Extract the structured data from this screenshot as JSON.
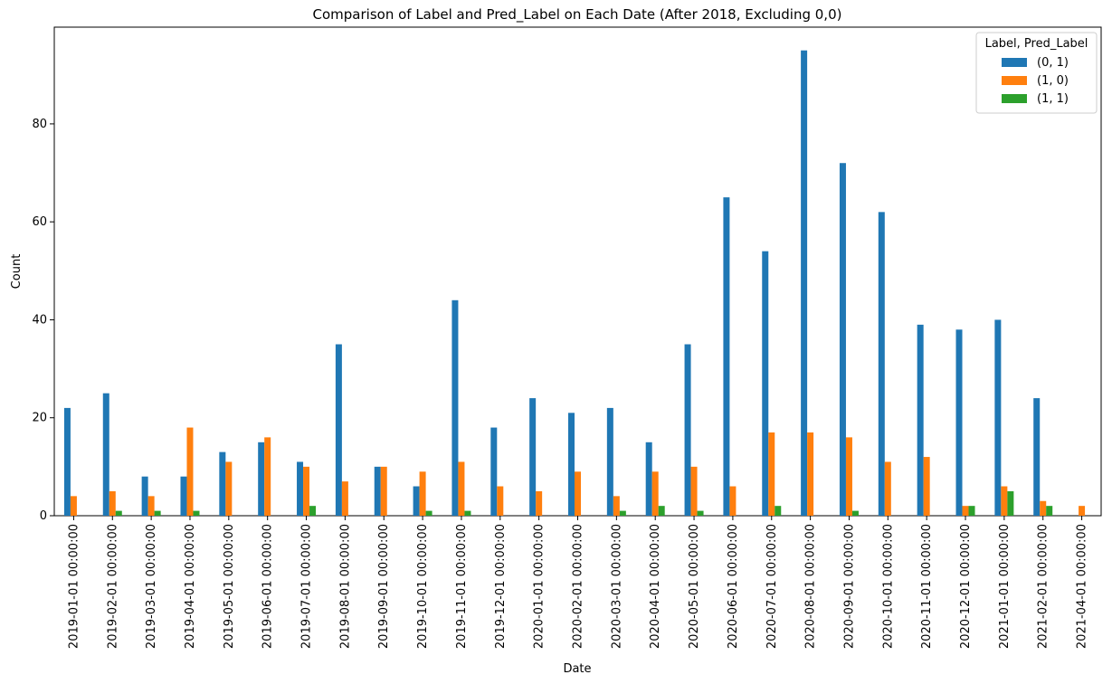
{
  "chart_data": {
    "type": "bar",
    "title": "Comparison of Label and Pred_Label on Each Date (After 2018, Excluding 0,0)",
    "xlabel": "Date",
    "ylabel": "Count",
    "ylim": [
      0,
      99.75
    ],
    "yticks": [
      0,
      20,
      40,
      60,
      80
    ],
    "grid": false,
    "legend_position": "top-right",
    "legend_title": "Label, Pred_Label",
    "categories": [
      "2019-01-01 00:00:00",
      "2019-02-01 00:00:00",
      "2019-03-01 00:00:00",
      "2019-04-01 00:00:00",
      "2019-05-01 00:00:00",
      "2019-06-01 00:00:00",
      "2019-07-01 00:00:00",
      "2019-08-01 00:00:00",
      "2019-09-01 00:00:00",
      "2019-10-01 00:00:00",
      "2019-11-01 00:00:00",
      "2019-12-01 00:00:00",
      "2020-01-01 00:00:00",
      "2020-02-01 00:00:00",
      "2020-03-01 00:00:00",
      "2020-04-01 00:00:00",
      "2020-05-01 00:00:00",
      "2020-06-01 00:00:00",
      "2020-07-01 00:00:00",
      "2020-08-01 00:00:00",
      "2020-09-01 00:00:00",
      "2020-10-01 00:00:00",
      "2020-11-01 00:00:00",
      "2020-12-01 00:00:00",
      "2021-01-01 00:00:00",
      "2021-02-01 00:00:00",
      "2021-04-01 00:00:00"
    ],
    "series": [
      {
        "name": "(0, 1)",
        "color": "#1f77b4",
        "values": [
          22,
          25,
          8,
          8,
          13,
          15,
          11,
          35,
          10,
          6,
          44,
          18,
          24,
          21,
          22,
          15,
          35,
          65,
          54,
          95,
          72,
          62,
          39,
          38,
          40,
          24,
          0
        ]
      },
      {
        "name": "(1, 0)",
        "color": "#ff7f0e",
        "values": [
          4,
          5,
          4,
          18,
          11,
          16,
          10,
          7,
          10,
          9,
          11,
          6,
          5,
          9,
          4,
          9,
          10,
          6,
          17,
          17,
          16,
          11,
          12,
          2,
          6,
          3,
          2
        ]
      },
      {
        "name": "(1, 1)",
        "color": "#2ca02c",
        "values": [
          0,
          1,
          1,
          1,
          0,
          0,
          2,
          0,
          0,
          1,
          1,
          0,
          0,
          0,
          1,
          2,
          1,
          0,
          2,
          0,
          1,
          0,
          0,
          2,
          5,
          2,
          0
        ]
      }
    ]
  }
}
